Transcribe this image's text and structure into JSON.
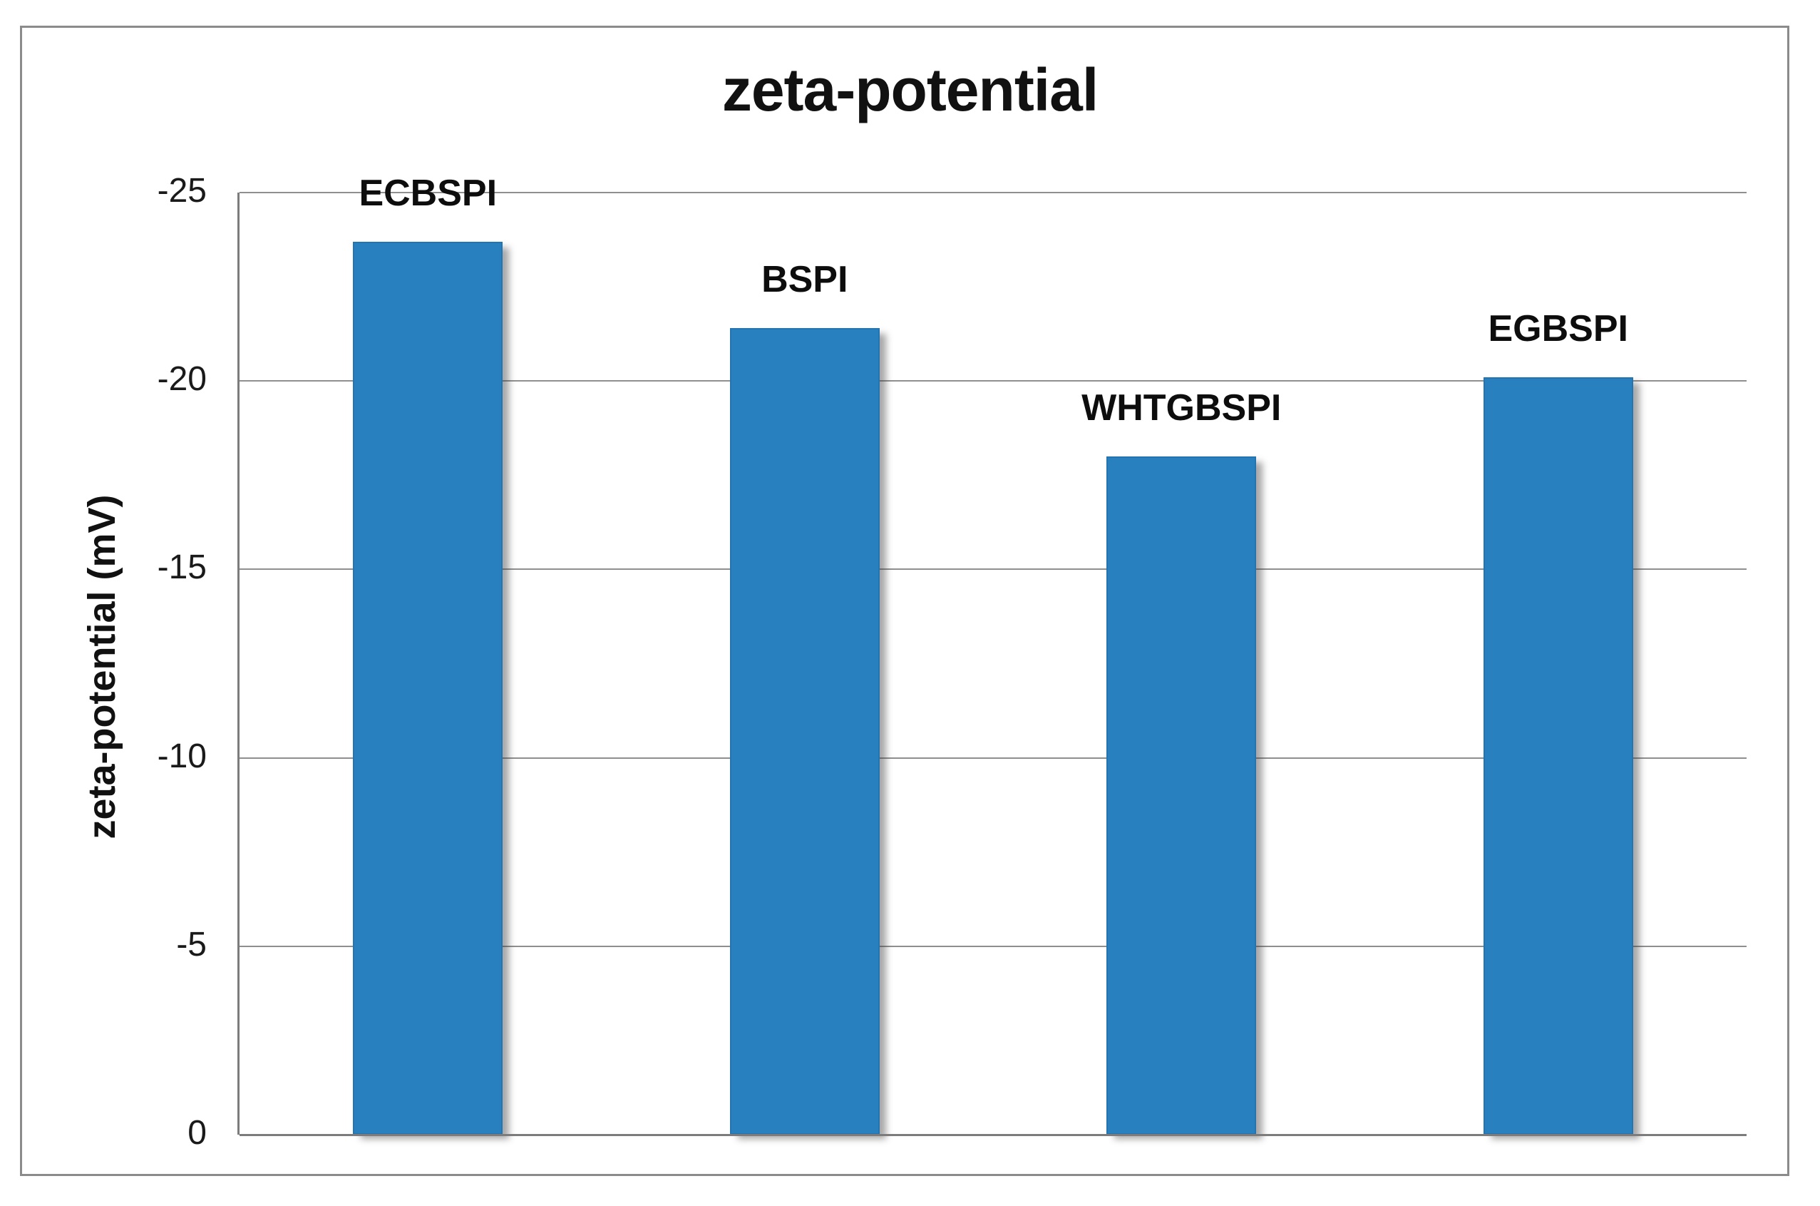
{
  "figure": {
    "title": "zeta-potential"
  },
  "chart_data": {
    "type": "bar",
    "title": "zeta-potential",
    "xlabel": "",
    "ylabel": "zeta-potential (mV)",
    "unit": "mV",
    "categories": [
      "ECBSPI",
      "BSPI",
      "WHTGBSPI",
      "EGBSPI"
    ],
    "values": [
      -23.7,
      -21.4,
      -18.0,
      -20.1
    ],
    "ylim": [
      0,
      -25
    ],
    "yticks": [
      -25,
      -20,
      -15,
      -10,
      -5,
      0
    ],
    "axis_inverted": true,
    "grid": true,
    "legend": false,
    "category_label_position": "above-bars",
    "colors": {
      "bar": "#2880BE",
      "bar_edge": "#2474B2",
      "gridline": "#8F8F8F",
      "axis": "#7C7C7C",
      "frame": "#8B8B8B",
      "text": "#111111",
      "background": "#FFFFFF"
    }
  }
}
